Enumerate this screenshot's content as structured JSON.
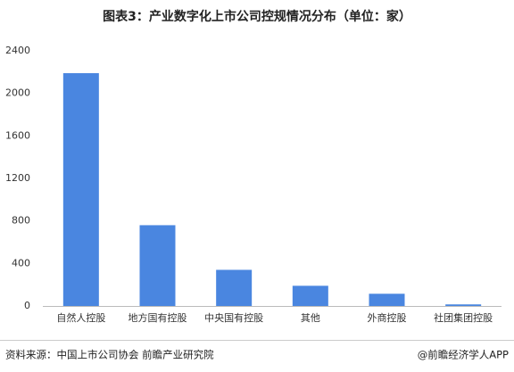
{
  "chart_data": {
    "type": "bar",
    "title": "图表3：产业数字化上市公司控规情况分布（单位：家）",
    "categories": [
      "自然人控股",
      "地方国有控股",
      "中央国有控股",
      "其他",
      "外商控股",
      "社团集团控股"
    ],
    "values": [
      2190,
      760,
      340,
      190,
      115,
      15
    ],
    "color": "#4a86e0",
    "ylim": [
      0,
      2400
    ],
    "yticks": [
      0,
      400,
      800,
      1200,
      1600,
      2000,
      2400
    ],
    "grid": false
  },
  "footer": {
    "source": "资料来源：中国上市公司协会 前瞻产业研究院",
    "credit": "@前瞻经济学人APP"
  }
}
